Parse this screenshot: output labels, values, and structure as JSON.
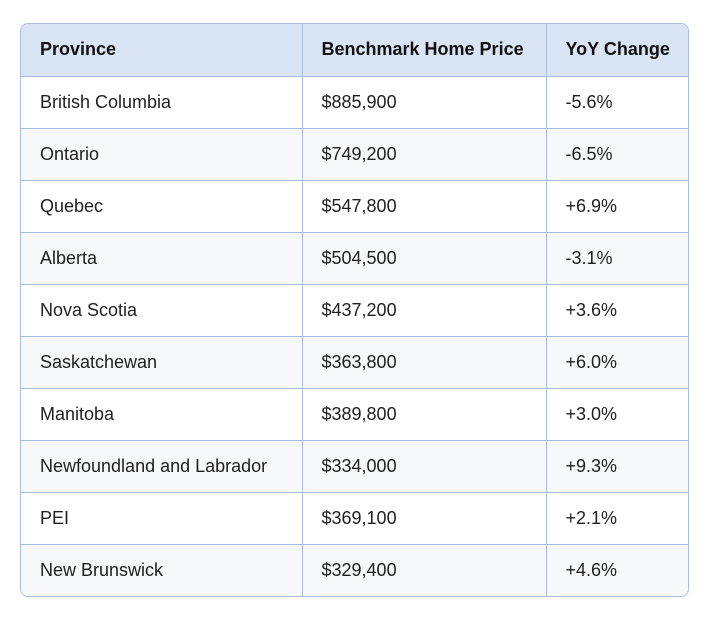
{
  "table": {
    "headers": [
      "Province",
      "Benchmark Home Price",
      "YoY Change"
    ],
    "rows": [
      [
        "British Columbia",
        "$885,900",
        "-5.6%"
      ],
      [
        "Ontario",
        "$749,200",
        "-6.5%"
      ],
      [
        "Quebec",
        "$547,800",
        "+6.9%"
      ],
      [
        "Alberta",
        "$504,500",
        "-3.1%"
      ],
      [
        "Nova Scotia",
        "$437,200",
        "+3.6%"
      ],
      [
        "Saskatchewan",
        "$363,800",
        "+6.0%"
      ],
      [
        "Manitoba",
        "$389,800",
        "+3.0%"
      ],
      [
        "Newfoundland and Labrador",
        "$334,000",
        "+9.3%"
      ],
      [
        "PEI",
        "$369,100",
        "+2.1%"
      ],
      [
        "New Brunswick",
        "$329,400",
        "+4.6%"
      ]
    ]
  },
  "colors": {
    "header_bg": "#d9e4f5",
    "border": "#a9bde0",
    "alt_row_bg": "#f7f8fa"
  }
}
